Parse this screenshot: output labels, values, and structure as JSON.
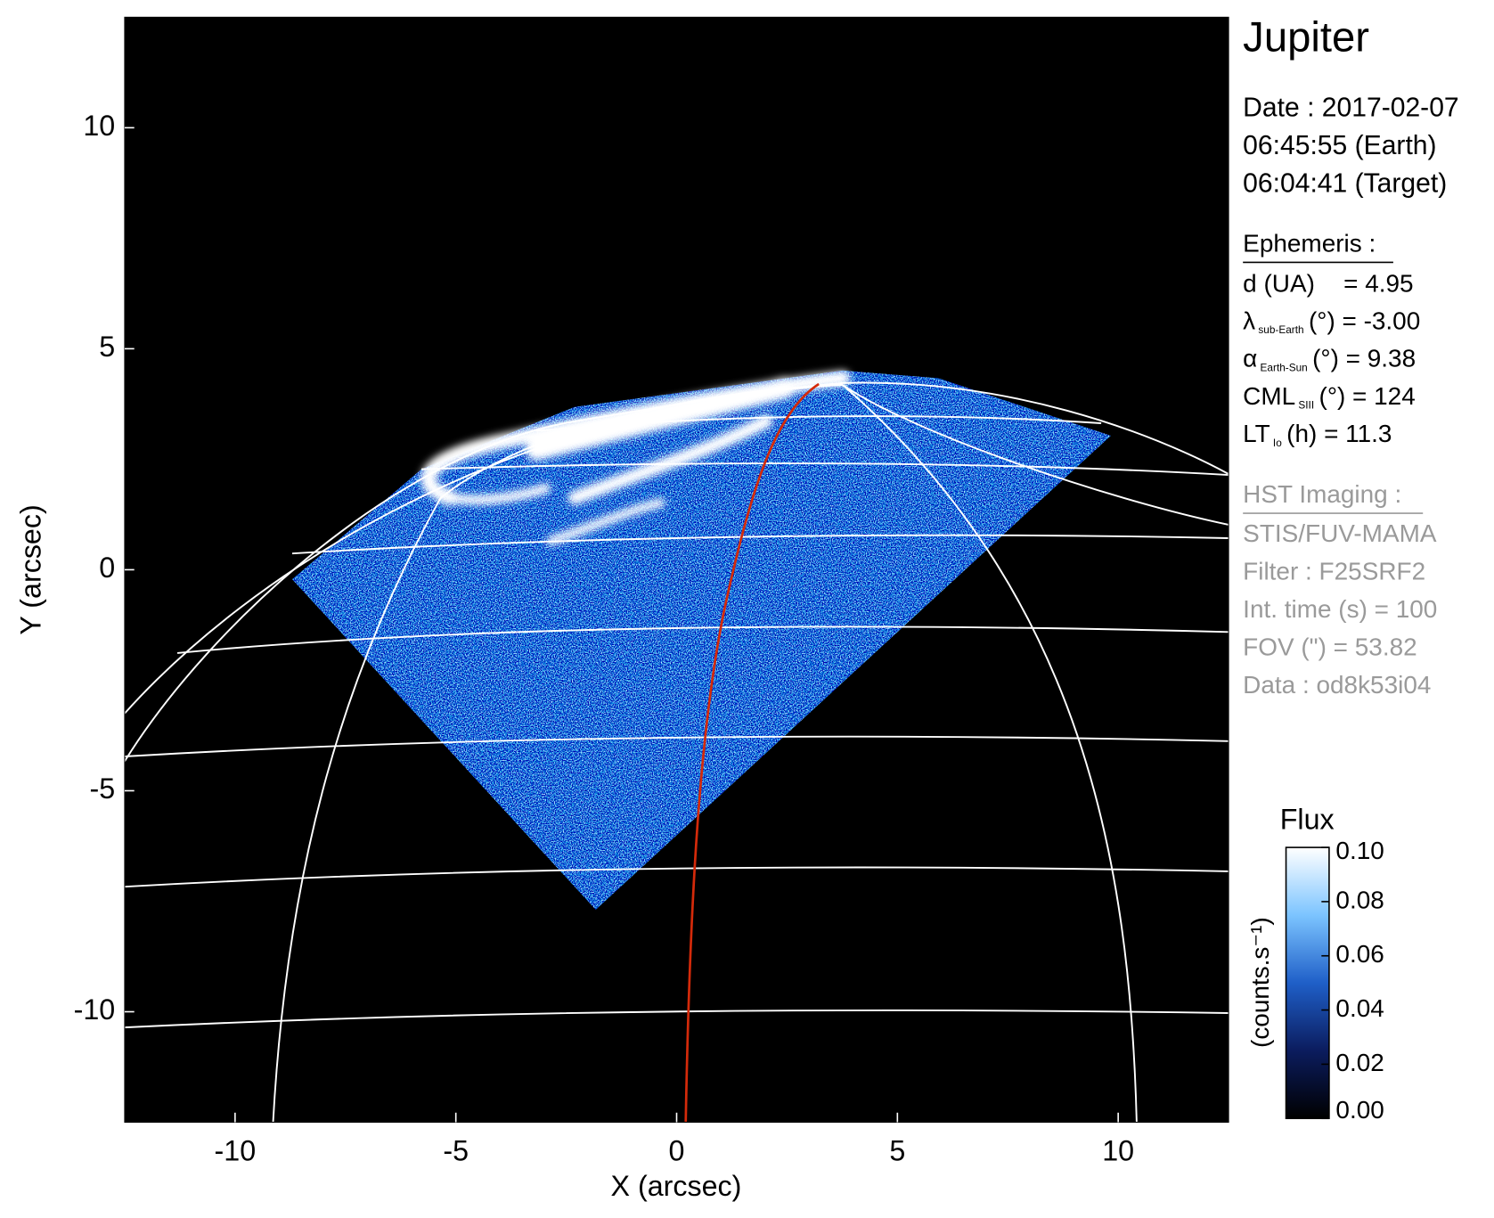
{
  "chart_data": {
    "type": "image",
    "title": "Jupiter",
    "xlabel": "X (arcsec)",
    "ylabel": "Y (arcsec)",
    "xlim": [
      -12.5,
      12.5
    ],
    "ylim": [
      -12.5,
      12.5
    ],
    "xticks": [
      -10,
      -5,
      0,
      5,
      10
    ],
    "yticks": [
      -10,
      -5,
      0,
      5,
      10
    ],
    "info": {
      "date": [
        "Date : 2017-02-07",
        "06:45:55 (Earth)",
        "06:04:41 (Target)"
      ],
      "ephemeris_title": "Ephemeris :",
      "ephemeris": [
        {
          "symbol": "d (UA)",
          "rest": "= 4.95"
        },
        {
          "symbol": "λ",
          "sub": "sub-Earth",
          "rest": "(°) = -3.00"
        },
        {
          "symbol": "α",
          "sub": "Earth-Sun",
          "rest": "(°) = 9.38"
        },
        {
          "symbol": "CML",
          "sub": "SIII",
          "rest": "(°) = 124"
        },
        {
          "symbol": "LT",
          "sub": "Io",
          "rest": "(h) = 11.3"
        }
      ],
      "imaging_title": "HST Imaging :",
      "imaging": [
        "STIS/FUV-MAMA",
        "Filter : F25SRF2",
        "Int. time (s) = 100",
        "FOV (\") = 53.82",
        "Data : od8k53i04"
      ]
    },
    "colorbar": {
      "label": "Flux",
      "unit": "(counts.s⁻¹)",
      "clim": [
        0,
        0.1
      ],
      "colormap": [
        "#000000",
        "#0b1c5e",
        "#1f5fc8",
        "#7cc4ff",
        "#ffffff"
      ],
      "ticks": [
        {
          "value": 0.1,
          "label": "0.10"
        },
        0.08,
        0.06,
        0.04,
        0.02,
        {
          "value": 0,
          "label": "0.00"
        }
      ]
    }
  }
}
